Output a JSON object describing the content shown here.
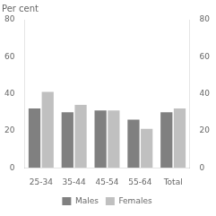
{
  "chart_data": {
    "type": "bar",
    "categories": [
      "25-34",
      "35-44",
      "45-54",
      "55-64",
      "Total"
    ],
    "series": [
      {
        "name": "Males",
        "color": "#808080",
        "values": [
          32,
          30,
          31,
          26,
          30
        ]
      },
      {
        "name": "Females",
        "color": "#c0c0c0",
        "values": [
          41,
          34,
          31,
          21,
          32
        ]
      }
    ],
    "ylim": [
      0,
      80
    ],
    "yticks": [
      0,
      20,
      40,
      60,
      80
    ],
    "y2lim": [
      0,
      80
    ],
    "y2ticks": [
      0,
      20,
      40,
      60,
      80
    ],
    "annotations": [
      "Per cent"
    ],
    "legend": "bottom",
    "grid": false
  }
}
